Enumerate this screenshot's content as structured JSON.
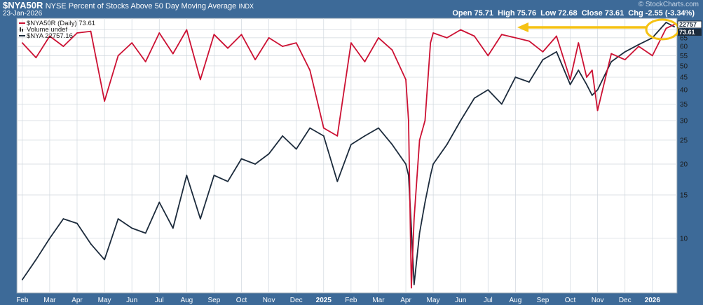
{
  "header": {
    "symbol": "$NYA50R",
    "title": "NYSE Percent of Stocks Above 50 Day Moving Average",
    "exchange": "INDX",
    "brand": "© StockCharts.com",
    "date": "23-Jan-2026",
    "open_label": "Open",
    "open": "75.71",
    "high_label": "High",
    "high": "75.76",
    "low_label": "Low",
    "low": "72.68",
    "close_label": "Close",
    "close": "73.61",
    "chg_label": "Chg",
    "chg": "-2.55 (-3.34%)"
  },
  "legend": {
    "series1": "$NYA50R (Daily) 73.61",
    "volume": "Volume undef",
    "series2": "$NYA 22757.16"
  },
  "price_tags": {
    "nya": "22757",
    "nya50r": "73.61"
  },
  "colors": {
    "frame": "#3d6a98",
    "nya50r": "#cc1133",
    "nya": "#1c2b3c",
    "annotation": "#f5c214",
    "grid": "#d0d7de"
  },
  "chart_data": {
    "type": "line",
    "x_ticks": [
      "Feb",
      "Mar",
      "Apr",
      "May",
      "Jun",
      "Jul",
      "Aug",
      "Sep",
      "Oct",
      "Nov",
      "Dec",
      "2025",
      "Feb",
      "Mar",
      "Apr",
      "May",
      "Jun",
      "Jul",
      "Aug",
      "Sep",
      "Oct",
      "Nov",
      "Dec",
      "2026"
    ],
    "y_scale": "log",
    "y_ticks": [
      10,
      15,
      20,
      25,
      30,
      35,
      40,
      45,
      50,
      55,
      60,
      65,
      70
    ],
    "grid": true,
    "legend_position": "top-left",
    "series": [
      {
        "name": "$NYA50R (Daily)",
        "color": "#cc1133",
        "x": [
          0.0,
          0.5,
          1.0,
          1.5,
          2.0,
          2.5,
          3.0,
          3.5,
          4.0,
          4.5,
          5.0,
          5.5,
          6.0,
          6.5,
          7.0,
          7.5,
          8.0,
          8.5,
          9.0,
          9.5,
          10.0,
          10.5,
          11.0,
          11.5,
          12.0,
          12.5,
          13.0,
          13.5,
          14.0,
          14.1,
          14.2,
          14.3,
          14.5,
          14.7,
          14.9,
          15.0,
          15.5,
          16.0,
          16.5,
          17.0,
          17.5,
          18.0,
          18.5,
          19.0,
          19.5,
          20.0,
          20.3,
          20.6,
          20.8,
          21.0,
          21.5,
          22.0,
          22.5,
          23.0,
          23.5,
          23.8
        ],
        "values": [
          62,
          54,
          66,
          60,
          68,
          69,
          36,
          55,
          62,
          52,
          68,
          56,
          70,
          44,
          67,
          59,
          67,
          53,
          65,
          60,
          62,
          48,
          28,
          26,
          62,
          52,
          65,
          58,
          44,
          30,
          6.3,
          12,
          25,
          30,
          62,
          68,
          65,
          70,
          66,
          55,
          67,
          65,
          63,
          57,
          66,
          44,
          62,
          45,
          48,
          33,
          56,
          53,
          60,
          55,
          71,
          73.61
        ]
      },
      {
        "name": "$NYA",
        "color": "#1c2b3c",
        "x": [
          0.0,
          0.5,
          1.0,
          1.5,
          2.0,
          2.5,
          3.0,
          3.5,
          4.0,
          4.5,
          5.0,
          5.5,
          6.0,
          6.5,
          7.0,
          7.5,
          8.0,
          8.5,
          9.0,
          9.5,
          10.0,
          10.5,
          11.0,
          11.5,
          12.0,
          12.5,
          13.0,
          13.5,
          14.0,
          14.1,
          14.2,
          14.3,
          14.5,
          14.7,
          14.9,
          15.0,
          15.5,
          16.0,
          16.5,
          17.0,
          17.5,
          18.0,
          18.5,
          19.0,
          19.5,
          20.0,
          20.3,
          20.6,
          20.8,
          21.0,
          21.5,
          22.0,
          22.5,
          23.0,
          23.5,
          23.8
        ],
        "values": [
          6.8,
          8.2,
          10,
          12,
          11.5,
          9.5,
          8.2,
          12,
          11,
          10.5,
          14,
          11,
          18,
          12,
          18,
          17,
          21,
          20,
          22,
          26,
          23,
          28,
          26,
          17,
          24,
          26,
          28,
          24,
          20,
          18,
          11,
          6.5,
          10.5,
          14,
          18,
          20,
          24,
          30,
          37,
          40,
          35,
          45,
          43,
          53,
          57,
          42,
          48,
          42,
          38,
          40,
          52,
          57,
          61,
          65,
          75,
          72
        ]
      }
    ]
  }
}
